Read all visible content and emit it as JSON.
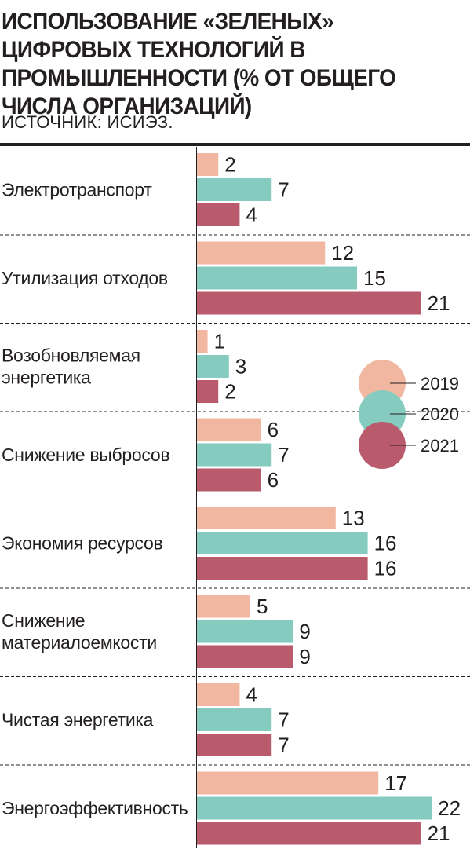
{
  "title": "ИСПОЛЬЗОВАНИЕ «ЗЕЛЕНЫХ» ЦИФРОВЫХ ТЕХНОЛОГИЙ В ПРОМЫШЛЕННОСТИ (% ОТ ОБЩЕГО ЧИСЛА ОРГАНИЗАЦИЙ)",
  "source": "ИСТОЧНИК: ИСИЭЗ.",
  "colors": {
    "2019": "#f2b7a1",
    "2020": "#86cbbf",
    "2021": "#b95a6d"
  },
  "chart_data": {
    "type": "bar",
    "orientation": "horizontal",
    "title": "ИСПОЛЬЗОВАНИЕ «ЗЕЛЕНЫХ» ЦИФРОВЫХ ТЕХНОЛОГИЙ В ПРОМЫШЛЕННОСТИ (% ОТ ОБЩЕГО ЧИСЛА ОРГАНИЗАЦИЙ)",
    "categories": [
      [
        "Электротранспорт"
      ],
      [
        "Утилизация отходов"
      ],
      [
        "Возобновляемая",
        "энергетика"
      ],
      [
        "Снижение выбросов"
      ],
      [
        "Экономия ресурсов"
      ],
      [
        "Снижение",
        "материалоемкости"
      ],
      [
        "Чистая энергетика"
      ],
      [
        "Энергоэффективность"
      ]
    ],
    "series": [
      {
        "name": "2019",
        "color": "#f2b7a1",
        "values": [
          2,
          12,
          1,
          6,
          13,
          5,
          4,
          17
        ]
      },
      {
        "name": "2020",
        "color": "#86cbbf",
        "values": [
          7,
          15,
          3,
          7,
          16,
          9,
          7,
          22
        ]
      },
      {
        "name": "2021",
        "color": "#b95a6d",
        "values": [
          4,
          21,
          2,
          6,
          16,
          9,
          7,
          21
        ]
      }
    ],
    "data_labels": true,
    "legend_position": "right"
  }
}
